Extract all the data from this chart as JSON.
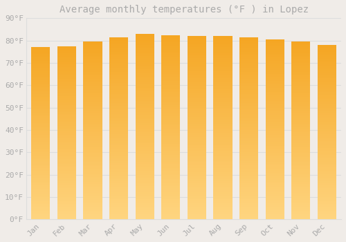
{
  "title": "Average monthly temperatures (°F ) in Lopez",
  "months": [
    "Jan",
    "Feb",
    "Mar",
    "Apr",
    "May",
    "Jun",
    "Jul",
    "Aug",
    "Sep",
    "Oct",
    "Nov",
    "Dec"
  ],
  "values": [
    77.0,
    77.5,
    79.5,
    81.5,
    83.0,
    82.5,
    82.0,
    82.0,
    81.5,
    80.5,
    79.5,
    78.0
  ],
  "ylim": [
    0,
    90
  ],
  "yticks": [
    0,
    10,
    20,
    30,
    40,
    50,
    60,
    70,
    80,
    90
  ],
  "bar_color_dark": "#F5A623",
  "bar_color_light": "#FFD580",
  "background_color": "#f0ece8",
  "grid_color": "#dddddd",
  "title_fontsize": 10,
  "tick_fontsize": 8,
  "font_color": "#aaaaaa",
  "font_family": "monospace"
}
